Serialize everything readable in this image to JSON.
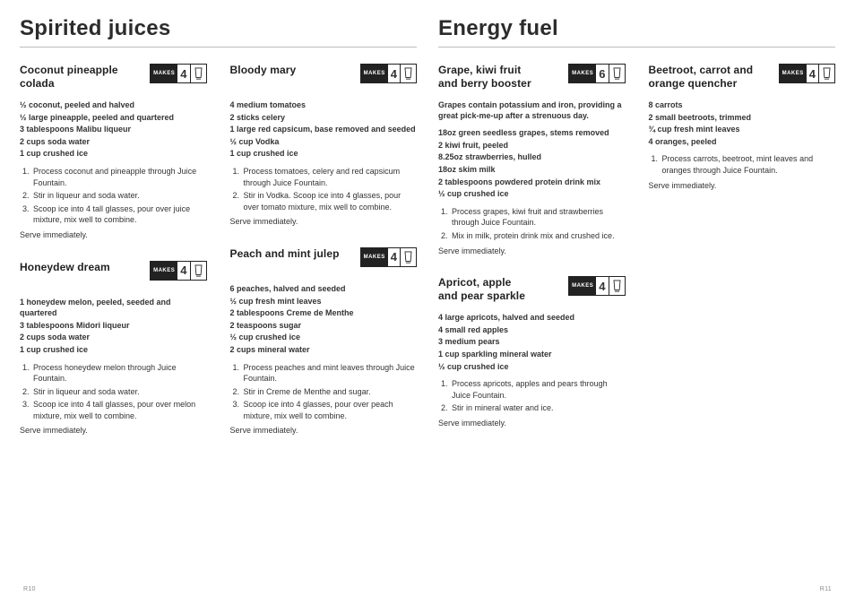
{
  "makes_label": "MAKES",
  "colors": {
    "text": "#333333",
    "title": "#2c2c2c",
    "rule": "#bdbdbd",
    "badge_dark": "#222222",
    "background": "#ffffff",
    "pagenum": "#888888"
  },
  "typography": {
    "section_title_fontsize": 24,
    "recipe_name_fontsize": 12,
    "body_fontsize": 9,
    "font_family": "Arial / Arial Narrow"
  },
  "sections": [
    {
      "title": "Spirited juices",
      "columns": [
        [
          {
            "name": "Coconut pineapple colada",
            "makes": 4,
            "ingredients": [
              "½ coconut, peeled and halved",
              "½ large pineapple, peeled and quartered",
              "3 tablespoons Malibu liqueur",
              "2 cups soda water",
              "1 cup crushed ice"
            ],
            "steps": [
              "Process coconut and pineapple through Juice Fountain.",
              "Stir in liqueur and soda water.",
              "Scoop ice into 4 tall glasses, pour over juice mixture, mix well to combine."
            ],
            "serve": "Serve immediately."
          },
          {
            "name": "Honeydew dream",
            "makes": 4,
            "ingredients": [
              "1 honeydew melon, peeled, seeded and quartered",
              "3 tablespoons Midori liqueur",
              "2 cups soda water",
              "1 cup crushed ice"
            ],
            "steps": [
              "Process honeydew melon through Juice Fountain.",
              "Stir in liqueur and soda water.",
              "Scoop ice into 4 tall glasses, pour over melon mixture, mix well to combine."
            ],
            "serve": "Serve immediately."
          }
        ],
        [
          {
            "name": "Bloody mary",
            "makes": 4,
            "ingredients": [
              "4 medium tomatoes",
              "2 sticks celery",
              "1 large red capsicum, base removed and seeded",
              "½ cup Vodka",
              "1 cup crushed ice"
            ],
            "steps": [
              "Process tomatoes, celery and red capsicum through Juice Fountain.",
              "Stir in Vodka. Scoop ice into 4 glasses, pour over tomato mixture, mix well to combine."
            ],
            "serve": "Serve immediately."
          },
          {
            "name": "Peach and mint julep",
            "makes": 4,
            "ingredients": [
              "6 peaches, halved and seeded",
              "½ cup fresh mint leaves",
              "2 tablespoons Creme de Menthe",
              "2 teaspoons sugar",
              "½ cup crushed ice",
              "2 cups mineral water"
            ],
            "steps": [
              "Process peaches and mint leaves through Juice Fountain.",
              "Stir in Creme de Menthe and sugar.",
              "Scoop ice into 4 glasses, pour over peach mixture, mix well to combine."
            ],
            "serve": "Serve immediately."
          }
        ]
      ]
    },
    {
      "title": "Energy fuel",
      "columns": [
        [
          {
            "name": "Grape, kiwi fruit and berry booster",
            "makes": 6,
            "intro": "Grapes contain potassium and iron, providing a great pick-me-up after a strenuous day.",
            "ingredients": [
              "18oz green seedless grapes, stems removed",
              "2 kiwi fruit, peeled",
              "8.25oz strawberries, hulled",
              "18oz skim milk",
              "2 tablespoons powdered protein drink mix",
              "½ cup crushed ice"
            ],
            "steps": [
              "Process grapes, kiwi fruit and strawberries through Juice Fountain.",
              "Mix in milk, protein drink mix and crushed ice."
            ],
            "serve": "Serve immediately."
          },
          {
            "name": "Apricot, apple and pear sparkle",
            "makes": 4,
            "ingredients": [
              "4 large apricots, halved and seeded",
              "4 small red apples",
              "3 medium pears",
              "1 cup sparkling mineral water",
              "½ cup crushed ice"
            ],
            "steps": [
              "Process apricots, apples and pears through Juice Fountain.",
              "Stir in mineral water and ice."
            ],
            "serve": "Serve immediately."
          }
        ],
        [
          {
            "name": "Beetroot, carrot and orange quencher",
            "makes": 4,
            "ingredients": [
              "8 carrots",
              "2 small beetroots, trimmed",
              "¾ cup fresh mint leaves",
              "4 oranges, peeled"
            ],
            "steps": [
              "Process carrots, beetroot, mint leaves and oranges through Juice Fountain."
            ],
            "serve": "Serve immediately."
          }
        ]
      ]
    }
  ],
  "page_numbers": {
    "left": "R10",
    "right": "R11"
  }
}
